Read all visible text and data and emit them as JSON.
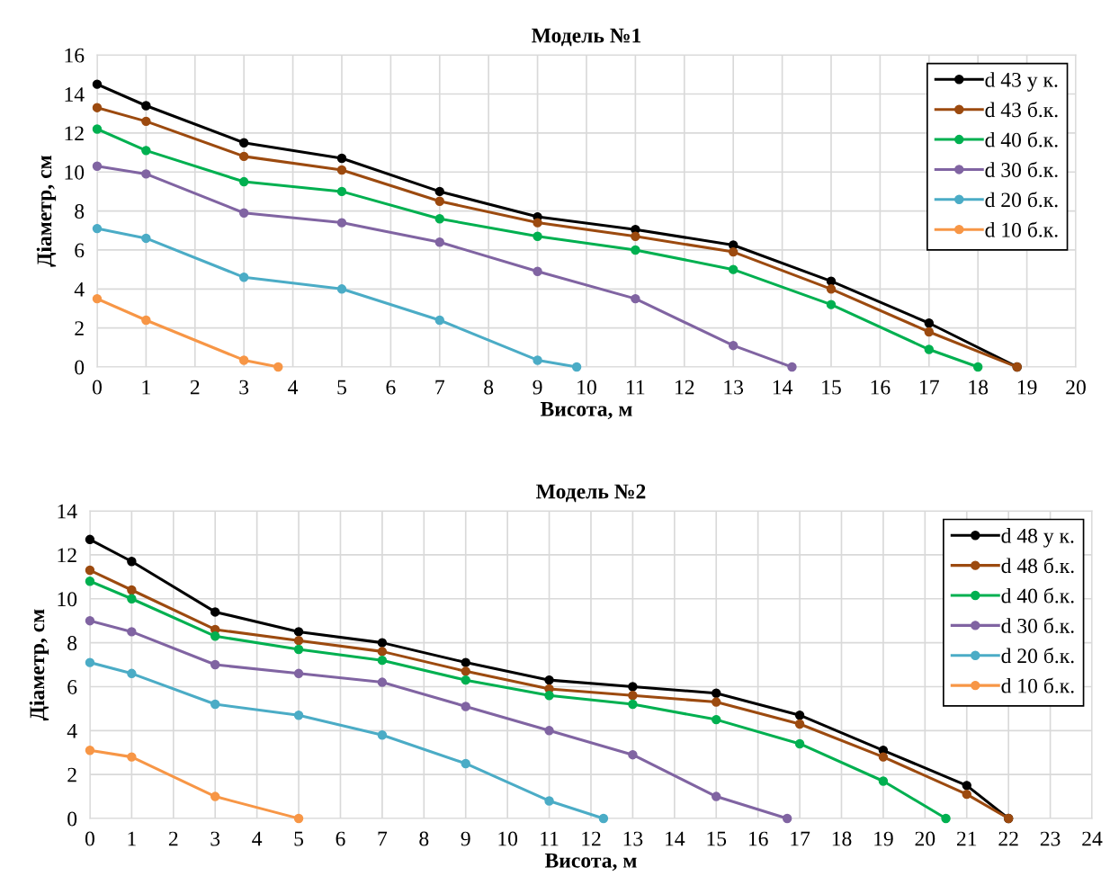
{
  "chart_data": [
    {
      "type": "line",
      "title": "Модель №1",
      "xlabel": "Висота, м",
      "ylabel": "Діаметр, см",
      "xlim": [
        0,
        20
      ],
      "xticks": [
        0,
        1,
        2,
        3,
        4,
        5,
        6,
        7,
        8,
        9,
        10,
        11,
        12,
        13,
        14,
        15,
        16,
        17,
        18,
        19,
        20
      ],
      "ylim": [
        0,
        16
      ],
      "yticks": [
        0,
        2,
        4,
        6,
        8,
        10,
        12,
        14,
        16
      ],
      "grid": true,
      "legend": "top right",
      "marker": "circle",
      "line_style": "solid",
      "series": [
        {
          "name": "d 43 у к.",
          "color": "#000000",
          "x": [
            0,
            1,
            3,
            5,
            7,
            9,
            11,
            13,
            15,
            17,
            18.8
          ],
          "values": [
            14.5,
            13.4,
            11.5,
            10.7,
            9.0,
            7.7,
            7.05,
            6.25,
            4.4,
            2.25,
            0
          ]
        },
        {
          "name": "d 43 б.к.",
          "color": "#9c4a0f",
          "x": [
            0,
            1,
            3,
            5,
            7,
            9,
            11,
            13,
            15,
            17,
            18.8
          ],
          "values": [
            13.3,
            12.6,
            10.8,
            10.1,
            8.5,
            7.4,
            6.7,
            5.9,
            4.0,
            1.8,
            0
          ]
        },
        {
          "name": "d 40 б.к.",
          "color": "#00b050",
          "x": [
            0,
            1,
            3,
            5,
            7,
            9,
            11,
            13,
            15,
            17,
            18.0
          ],
          "values": [
            12.2,
            11.1,
            9.5,
            9.0,
            7.6,
            6.7,
            6.0,
            5.0,
            3.2,
            0.9,
            0
          ]
        },
        {
          "name": "d 30 б.к.",
          "color": "#8064a2",
          "x": [
            0,
            1,
            3,
            5,
            7,
            9,
            11,
            13,
            14.2
          ],
          "values": [
            10.3,
            9.9,
            7.9,
            7.4,
            6.4,
            4.9,
            3.5,
            1.1,
            0
          ]
        },
        {
          "name": "d 20 б.к.",
          "color": "#4bacc6",
          "x": [
            0,
            1,
            3,
            5,
            7,
            9,
            9.8
          ],
          "values": [
            7.1,
            6.6,
            4.6,
            4.0,
            2.4,
            0.35,
            0
          ]
        },
        {
          "name": "d 10 б.к.",
          "color": "#f79646",
          "x": [
            0,
            1,
            3,
            3.7
          ],
          "values": [
            3.5,
            2.4,
            0.35,
            0
          ]
        }
      ]
    },
    {
      "type": "line",
      "title": "Модель №2",
      "xlabel": "Висота, м",
      "ylabel": "Діаметр, см",
      "xlim": [
        0,
        24
      ],
      "xticks": [
        0,
        1,
        2,
        3,
        4,
        5,
        6,
        7,
        8,
        9,
        10,
        11,
        12,
        13,
        14,
        15,
        16,
        17,
        18,
        19,
        20,
        21,
        22,
        23,
        24
      ],
      "ylim": [
        0,
        14
      ],
      "yticks": [
        0,
        2,
        4,
        6,
        8,
        10,
        12,
        14
      ],
      "grid": true,
      "legend": "top right",
      "marker": "circle",
      "line_style": "solid",
      "series": [
        {
          "name": "d 48 у к.",
          "color": "#000000",
          "x": [
            0,
            1,
            3,
            5,
            7,
            9,
            11,
            13,
            15,
            17,
            19,
            21,
            22
          ],
          "values": [
            12.7,
            11.7,
            9.4,
            8.5,
            8.0,
            7.1,
            6.3,
            6.0,
            5.7,
            4.7,
            3.1,
            1.5,
            0
          ]
        },
        {
          "name": "d 48 б.к.",
          "color": "#9c4a0f",
          "x": [
            0,
            1,
            3,
            5,
            7,
            9,
            11,
            13,
            15,
            17,
            19,
            21,
            22
          ],
          "values": [
            11.3,
            10.4,
            8.6,
            8.1,
            7.6,
            6.7,
            5.9,
            5.6,
            5.3,
            4.3,
            2.8,
            1.1,
            0
          ]
        },
        {
          "name": "d 40 б.к.",
          "color": "#00b050",
          "x": [
            0,
            1,
            3,
            5,
            7,
            9,
            11,
            13,
            15,
            17,
            19,
            20.5
          ],
          "values": [
            10.8,
            10.0,
            8.3,
            7.7,
            7.2,
            6.3,
            5.6,
            5.2,
            4.5,
            3.4,
            1.7,
            0
          ]
        },
        {
          "name": "d 30 б.к.",
          "color": "#8064a2",
          "x": [
            0,
            1,
            3,
            5,
            7,
            9,
            11,
            13,
            15,
            16.7
          ],
          "values": [
            9.0,
            8.5,
            7.0,
            6.6,
            6.2,
            5.1,
            4.0,
            2.9,
            1.0,
            0
          ]
        },
        {
          "name": "d 20 б.к.",
          "color": "#4bacc6",
          "x": [
            0,
            1,
            3,
            5,
            7,
            9,
            11,
            12.3
          ],
          "values": [
            7.1,
            6.6,
            5.2,
            4.7,
            3.8,
            2.5,
            0.8,
            0
          ]
        },
        {
          "name": "d 10 б.к.",
          "color": "#f79646",
          "x": [
            0,
            1,
            3,
            5
          ],
          "values": [
            3.1,
            2.8,
            1.0,
            0
          ]
        }
      ]
    }
  ]
}
